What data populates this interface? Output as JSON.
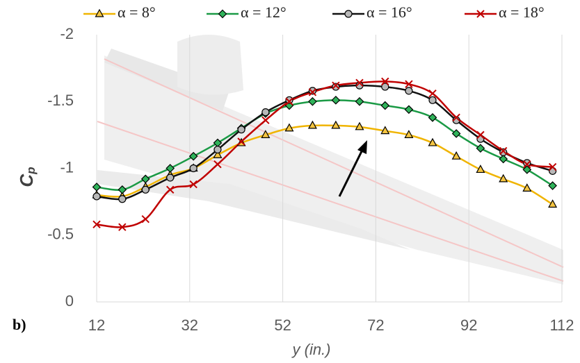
{
  "chart_data": {
    "type": "line",
    "x_label": "y (in.)",
    "y_label": "C",
    "y_label_sub": "p",
    "panel_label": "b)",
    "x": [
      12,
      17.5,
      22.5,
      27.8,
      32.8,
      38,
      43.1,
      48.3,
      53.4,
      58.4,
      63.4,
      68.5,
      74,
      79.1,
      84.2,
      89.3,
      94.5,
      99.4,
      104.5,
      110
    ],
    "series": [
      {
        "name": "α = 8°",
        "color": "#f0b400",
        "marker": "triangle",
        "marker_fill": "#f5c542",
        "values": [
          -0.8,
          -0.79,
          -0.86,
          -0.95,
          -1.0,
          -1.1,
          -1.19,
          -1.25,
          -1.3,
          -1.32,
          -1.32,
          -1.31,
          -1.28,
          -1.25,
          -1.19,
          -1.09,
          -0.99,
          -0.92,
          -0.85,
          -0.73
        ]
      },
      {
        "name": "α = 12°",
        "color": "#1a9a45",
        "marker": "diamond",
        "marker_fill": "#2fb35a",
        "values": [
          -0.86,
          -0.84,
          -0.92,
          -1.0,
          -1.09,
          -1.19,
          -1.3,
          -1.41,
          -1.47,
          -1.5,
          -1.51,
          -1.5,
          -1.47,
          -1.44,
          -1.38,
          -1.26,
          -1.15,
          -1.07,
          -0.99,
          -0.87
        ]
      },
      {
        "name": "α = 16°",
        "color": "#111111",
        "marker": "circle",
        "marker_fill": "#b8b8b8",
        "values": [
          -0.79,
          -0.77,
          -0.84,
          -0.93,
          -1.0,
          -1.14,
          -1.29,
          -1.42,
          -1.51,
          -1.58,
          -1.61,
          -1.62,
          -1.61,
          -1.58,
          -1.51,
          -1.36,
          -1.22,
          -1.12,
          -1.04,
          -0.98
        ]
      },
      {
        "name": "α = 18°",
        "color": "#c00000",
        "marker": "cross",
        "marker_fill": "#c00000",
        "values": [
          -0.58,
          -0.56,
          -0.62,
          -0.84,
          -0.88,
          -1.03,
          -1.2,
          -1.36,
          -1.5,
          -1.57,
          -1.62,
          -1.64,
          -1.65,
          -1.63,
          -1.56,
          -1.38,
          -1.25,
          -1.13,
          -1.03,
          -1.01
        ]
      }
    ],
    "xlim": [
      12,
      112
    ],
    "xticks": [
      12,
      32,
      52,
      72,
      92,
      112
    ],
    "ylim": [
      0,
      -2
    ],
    "yticks": [
      0,
      -0.5,
      -1,
      -1.5,
      -2
    ],
    "grid": "x",
    "legend": "top"
  }
}
